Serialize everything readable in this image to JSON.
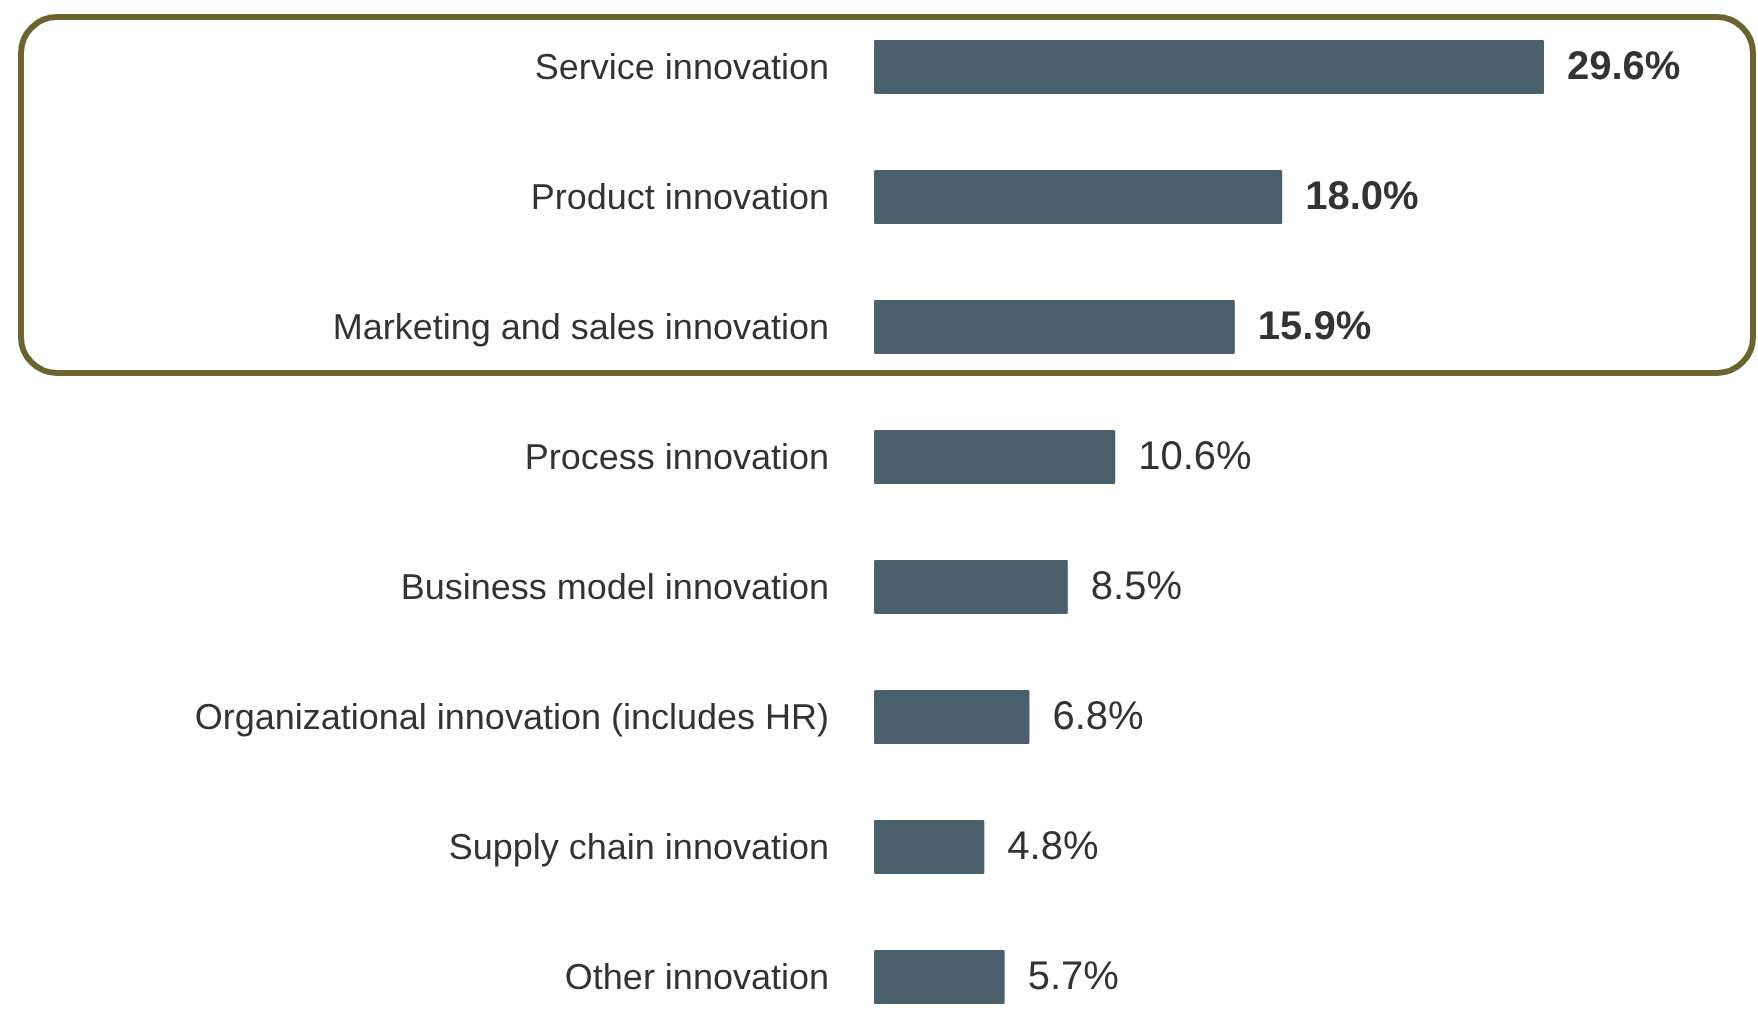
{
  "chart_data": {
    "type": "bar",
    "orientation": "horizontal",
    "categories": [
      "Service innovation",
      "Product innovation",
      "Marketing and sales innovation",
      "Process innovation",
      "Business model innovation",
      "Organizational innovation (includes HR)",
      "Supply chain innovation",
      "Other innovation"
    ],
    "values": [
      29.6,
      18.0,
      15.9,
      10.6,
      8.5,
      6.8,
      4.8,
      5.7
    ],
    "value_labels": [
      "29.6%",
      "18.0%",
      "15.9%",
      "10.6%",
      "8.5%",
      "6.8%",
      "4.8%",
      "5.7%"
    ],
    "color": "#4a5f6c",
    "grid": false
  }
}
